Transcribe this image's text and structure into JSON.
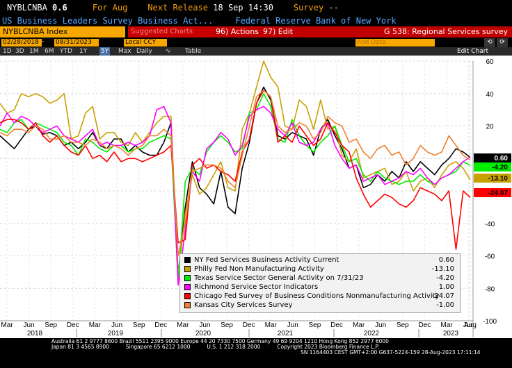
{
  "header": {
    "ticker": "NYBLCNBA",
    "value": "0.6",
    "for_label": "For Aug",
    "next_release": "Next Release",
    "next_release_date": "18 Sep 14:30",
    "survey_label": "Survey",
    "survey_value": "--",
    "title": "US Business Leaders Survey Business Act...",
    "source": "Federal Reserve Bank of New York"
  },
  "toolbar": {
    "index_name": "NYBLCNBA Index",
    "suggested": "Suggested Charts",
    "actions_label": "96) Actions",
    "edit_label": "97) Edit",
    "page_title": "G 538: Regional Services survey",
    "start_date": "02/28/2018",
    "end_date": "08/31/2023",
    "currency": "Local CCY",
    "add_data": "Add Data",
    "edit_chart": "Edit Chart",
    "zoom": [
      "1D",
      "3D",
      "1M",
      "6M",
      "YTD",
      "1Y",
      "5Y",
      "Max"
    ],
    "zoom_selected": "5Y",
    "frequency": "Daily",
    "table_label": "Table"
  },
  "chart_data": {
    "type": "line",
    "ylim": [
      -100,
      60
    ],
    "y_ticks": [
      60,
      40,
      20,
      0,
      -20,
      -40,
      -60,
      -80,
      -100
    ],
    "x_month_labels": [
      "Mar",
      "Jun",
      "Sep",
      "Dec",
      "Mar",
      "Jun",
      "Sep",
      "Dec",
      "Mar",
      "Jun",
      "Sep",
      "Dec",
      "Mar",
      "Jun",
      "Sep",
      "Dec",
      "Mar",
      "Jun",
      "Sep",
      "Dec",
      "Mar",
      "Jun",
      "Aug"
    ],
    "x_year_labels": [
      "2018",
      "2019",
      "2020",
      "2021",
      "2022",
      "2023"
    ],
    "series": [
      {
        "name": "NY Fed Services Business Activity Current",
        "value_label": "0.60",
        "color": "#000000",
        "values": [
          14,
          10,
          6,
          12,
          18,
          20,
          15,
          16,
          14,
          8,
          10,
          6,
          10,
          16,
          8,
          6,
          12,
          12,
          4,
          8,
          4,
          2,
          2,
          10,
          22,
          -72,
          -30,
          -2,
          -18,
          -22,
          -28,
          -8,
          -30,
          -34,
          -6,
          10,
          34,
          44,
          36,
          14,
          12,
          16,
          14,
          12,
          2,
          18,
          24,
          14,
          6,
          -6,
          -4,
          -18,
          -16,
          -10,
          -14,
          -8,
          -12,
          -2,
          -8,
          -2,
          -6,
          -10,
          -4,
          0,
          6,
          4,
          0.6
        ]
      },
      {
        "name": "Philly Fed Non Manufacturing Activity",
        "value_label": "-13.10",
        "color": "#c8a000",
        "values": [
          34,
          28,
          30,
          40,
          38,
          40,
          38,
          34,
          36,
          40,
          12,
          14,
          28,
          32,
          12,
          16,
          16,
          10,
          8,
          16,
          10,
          16,
          22,
          26,
          26,
          -72,
          -34,
          -10,
          -22,
          -18,
          -10,
          -2,
          -18,
          -20,
          18,
          28,
          44,
          60,
          50,
          44,
          20,
          18,
          36,
          32,
          18,
          36,
          18,
          20,
          2,
          -2,
          6,
          -12,
          -10,
          -8,
          -6,
          -16,
          -14,
          -8,
          -20,
          -14,
          -12,
          -18,
          -10,
          -4,
          -2,
          -6,
          -13.1
        ]
      },
      {
        "name": "Texas Service Sector General Activity on 7/31/23",
        "value_label": "-4.20",
        "color": "#00ee00",
        "values": [
          18,
          16,
          22,
          24,
          18,
          22,
          20,
          18,
          16,
          10,
          8,
          2,
          12,
          10,
          6,
          4,
          8,
          8,
          4,
          6,
          6,
          10,
          12,
          14,
          12,
          -76,
          -14,
          -6,
          -10,
          4,
          10,
          14,
          10,
          4,
          6,
          28,
          30,
          40,
          32,
          12,
          10,
          24,
          14,
          8,
          4,
          10,
          14,
          20,
          8,
          -2,
          0,
          -10,
          -14,
          -8,
          -12,
          -14,
          -16,
          -14,
          -14,
          -10,
          -14,
          -16,
          -12,
          -10,
          -8,
          -2,
          -4.2
        ]
      },
      {
        "name": "Richmond Service Sector Indicators",
        "value_label": "1.00",
        "color": "#ff00ff",
        "values": [
          20,
          28,
          22,
          26,
          24,
          20,
          16,
          18,
          20,
          14,
          12,
          10,
          14,
          18,
          8,
          10,
          8,
          8,
          10,
          8,
          10,
          14,
          30,
          32,
          22,
          -78,
          -44,
          -8,
          -14,
          6,
          10,
          16,
          12,
          2,
          8,
          26,
          30,
          32,
          28,
          18,
          14,
          22,
          10,
          8,
          10,
          18,
          22,
          8,
          0,
          -6,
          -4,
          -14,
          -12,
          -10,
          -16,
          -14,
          -12,
          -8,
          -10,
          -6,
          -12,
          -16,
          -12,
          -10,
          -6,
          -2,
          1
        ]
      },
      {
        "name": "Chicago Fed Survey of Business Conditions Nonmanufacturing Activity",
        "value_label": "-24.07",
        "color": "#ff0000",
        "values": [
          22,
          24,
          24,
          22,
          18,
          22,
          14,
          10,
          14,
          8,
          4,
          2,
          8,
          0,
          2,
          -2,
          4,
          -2,
          0,
          0,
          -2,
          0,
          2,
          4,
          8,
          -52,
          -50,
          -4,
          0,
          -6,
          -4,
          -8,
          -10,
          -14,
          4,
          12,
          34,
          42,
          38,
          10,
          14,
          10,
          20,
          14,
          8,
          12,
          22,
          16,
          8,
          4,
          -12,
          -22,
          -30,
          -26,
          -22,
          -24,
          -28,
          -30,
          -26,
          -18,
          -20,
          -22,
          -26,
          -20,
          -56,
          -20,
          -24.07
        ]
      },
      {
        "name": "Kansas City Services Survey",
        "value_label": "-1.00",
        "color": "#f08030",
        "values": [
          16,
          14,
          18,
          18,
          16,
          20,
          18,
          12,
          12,
          14,
          10,
          10,
          8,
          12,
          10,
          6,
          8,
          6,
          2,
          6,
          8,
          14,
          14,
          18,
          14,
          -60,
          -40,
          -8,
          -6,
          -4,
          -4,
          -6,
          -14,
          -18,
          2,
          20,
          38,
          42,
          38,
          20,
          16,
          18,
          22,
          20,
          12,
          16,
          26,
          22,
          20,
          10,
          12,
          4,
          0,
          6,
          8,
          2,
          4,
          -4,
          0,
          8,
          4,
          2,
          4,
          14,
          8,
          2,
          -1
        ]
      }
    ]
  },
  "footer": {
    "line1": "Australia 61 2 9777 8600 Brazil 5511 2395 9000 Europe 44 20 7330 7500 Germany 49 69 9204 1210 Hong Kong 852 2977 6000",
    "line2": "Japan 81 3 4565 8900          Singapore 65 6212 1000          U.S. 1 212 318 2000          Copyright 2023 Bloomberg Finance L.P.",
    "line3": "SN 1164403 CEST GMT+2:00 G637-5224-159 28-Aug-2023 17:11:14"
  }
}
